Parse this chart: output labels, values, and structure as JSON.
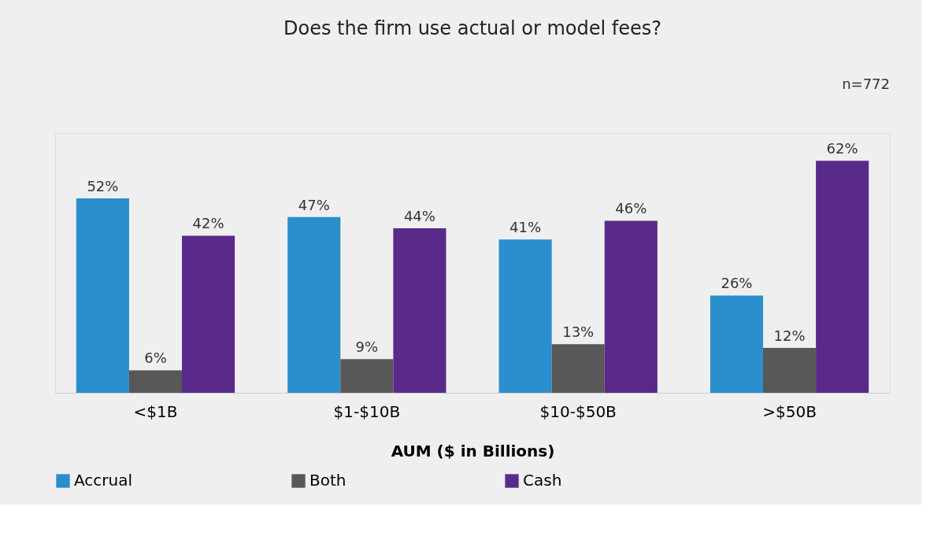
{
  "chart_data": {
    "type": "bar",
    "title": "Does the firm use actual or model fees?",
    "xlabel": "AUM ($ in Billions)",
    "annotations": [
      "n=772"
    ],
    "categories": [
      "<$1B",
      "$1-$10B",
      "$10-$50B",
      ">$50B"
    ],
    "series": [
      {
        "name": "Accrual",
        "color": "#2a8fcc",
        "values": [
          52,
          47,
          41,
          26
        ],
        "value_labels": [
          "52%",
          "47%",
          "41%",
          "26%"
        ]
      },
      {
        "name": "Both",
        "color": "#585858",
        "values": [
          6,
          9,
          13,
          12
        ],
        "value_labels": [
          "6%",
          "9%",
          "13%",
          "12%"
        ]
      },
      {
        "name": "Cash",
        "color": "#5a2a8a",
        "values": [
          42,
          44,
          46,
          62
        ],
        "value_labels": [
          "42%",
          "44%",
          "46%",
          "62%"
        ]
      }
    ],
    "legend": "bottom",
    "grid": false
  }
}
